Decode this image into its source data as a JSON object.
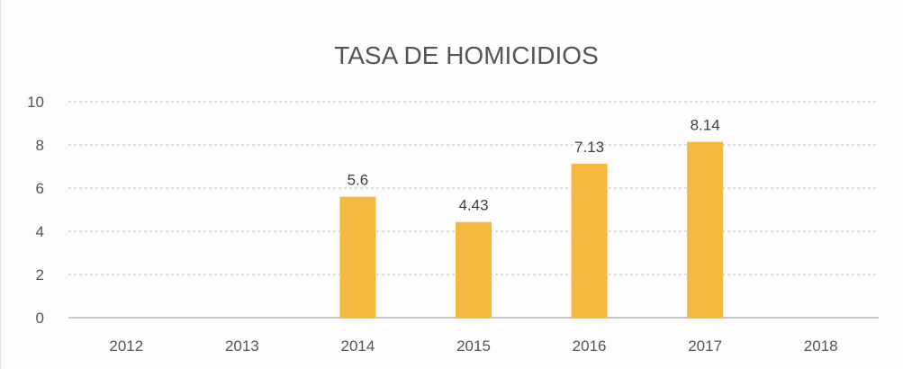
{
  "chart_data": {
    "type": "bar",
    "title": "TASA DE HOMICIDIOS",
    "xlabel": "",
    "ylabel": "",
    "categories": [
      "2012",
      "2013",
      "2014",
      "2015",
      "2016",
      "2017",
      "2018"
    ],
    "values": [
      null,
      null,
      5.6,
      4.43,
      7.13,
      8.14,
      null
    ],
    "data_labels": [
      "",
      "",
      "5.6",
      "4.43",
      "7.13",
      "8.14",
      ""
    ],
    "ylim": [
      0,
      10
    ],
    "yticks": [
      "0",
      "2",
      "4",
      "6",
      "8",
      "10"
    ],
    "grid": true,
    "legend": "none",
    "bar_color": "#f5b93f"
  }
}
